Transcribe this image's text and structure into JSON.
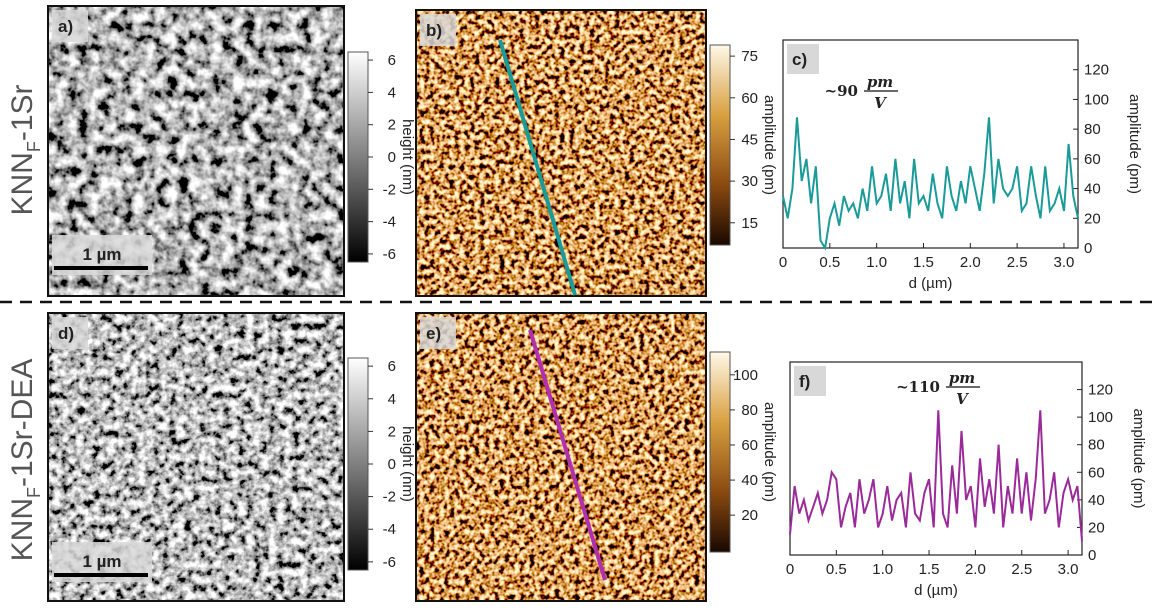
{
  "rows": [
    {
      "main": "KNN",
      "sub": "F",
      "rest": "-1Sr"
    },
    {
      "main": "KNN",
      "sub": "F",
      "rest": "-1Sr-DEA"
    }
  ],
  "images": [
    {
      "label": "a)",
      "scale_bar": "1 µm"
    },
    {
      "label": "b)"
    },
    {
      "label": "d)",
      "scale_bar": "1 µm"
    },
    {
      "label": "e)"
    }
  ],
  "colorbars": [
    {
      "label": "height (nm)",
      "lim": [
        -6.5,
        6.5
      ],
      "ticks": [
        6,
        4,
        2,
        0,
        -2,
        -4,
        -6
      ]
    },
    {
      "label": "amplitude (pm)",
      "lim": [
        7,
        79
      ],
      "ticks": [
        75,
        60,
        45,
        30,
        15
      ]
    },
    {
      "label": "height (nm)",
      "lim": [
        -6.5,
        6.5
      ],
      "ticks": [
        6,
        4,
        2,
        0,
        -2,
        -4,
        -6
      ]
    },
    {
      "label": "amplitude (pm)",
      "lim": [
        -1,
        113
      ],
      "ticks": [
        100,
        80,
        60,
        40,
        20
      ]
    }
  ],
  "chart_data": [
    {
      "type": "line",
      "label": "c)",
      "xlabel": "d (µm)",
      "ylabel": "amplitude (pm)",
      "color": "#1a9a98",
      "annotation": {
        "prefix": "~90",
        "numerator": "pm",
        "denominator": "V"
      },
      "xlim": [
        0,
        3.15
      ],
      "ylim": [
        0,
        140
      ],
      "xticks": [
        0,
        0.5,
        {
          "value": 1,
          "label": "1.0"
        },
        1.5,
        {
          "value": 2,
          "label": "2.0"
        },
        2.5,
        {
          "value": 3,
          "label": "3.0"
        }
      ],
      "yticks": [
        0,
        20,
        40,
        60,
        80,
        100,
        120
      ],
      "x": [
        0,
        0.05,
        0.1,
        0.15,
        0.2,
        0.25,
        0.3,
        0.35,
        0.4,
        0.45,
        0.5,
        0.55,
        0.6,
        0.65,
        0.7,
        0.75,
        0.8,
        0.85,
        0.9,
        0.95,
        1,
        1.05,
        1.1,
        1.15,
        1.2,
        1.25,
        1.3,
        1.35,
        1.4,
        1.45,
        1.5,
        1.55,
        1.6,
        1.65,
        1.7,
        1.75,
        1.8,
        1.85,
        1.9,
        1.95,
        2,
        2.05,
        2.1,
        2.15,
        2.2,
        2.25,
        2.3,
        2.35,
        2.4,
        2.45,
        2.5,
        2.55,
        2.6,
        2.65,
        2.7,
        2.75,
        2.8,
        2.85,
        2.9,
        2.95,
        3,
        3.05,
        3.1,
        3.15
      ],
      "values": [
        35,
        20,
        40,
        88,
        45,
        60,
        30,
        55,
        5,
        0,
        20,
        30,
        15,
        35,
        25,
        30,
        20,
        40,
        25,
        55,
        30,
        35,
        50,
        25,
        60,
        30,
        45,
        20,
        60,
        30,
        35,
        25,
        50,
        30,
        20,
        55,
        35,
        25,
        45,
        30,
        55,
        40,
        25,
        50,
        88,
        30,
        60,
        40,
        35,
        40,
        55,
        25,
        30,
        55,
        35,
        20,
        55,
        25,
        30,
        40,
        25,
        70,
        35,
        20
      ]
    },
    {
      "type": "line",
      "label": "f)",
      "xlabel": "d (µm)",
      "ylabel": "amplitude (pm)",
      "color": "#9a2a9a",
      "annotation": {
        "prefix": "~110",
        "numerator": "pm",
        "denominator": "V"
      },
      "xlim": [
        0,
        3.15
      ],
      "ylim": [
        0,
        140
      ],
      "xticks": [
        0,
        0.5,
        {
          "value": 1,
          "label": "1.0"
        },
        1.5,
        {
          "value": 2,
          "label": "2.0"
        },
        2.5,
        {
          "value": 3,
          "label": "3.0"
        }
      ],
      "yticks": [
        0,
        20,
        40,
        60,
        80,
        100,
        120
      ],
      "x": [
        0,
        0.05,
        0.1,
        0.15,
        0.2,
        0.25,
        0.3,
        0.35,
        0.4,
        0.45,
        0.5,
        0.55,
        0.6,
        0.65,
        0.7,
        0.75,
        0.8,
        0.85,
        0.9,
        0.95,
        1,
        1.05,
        1.1,
        1.15,
        1.2,
        1.25,
        1.3,
        1.35,
        1.4,
        1.45,
        1.5,
        1.55,
        1.6,
        1.65,
        1.7,
        1.75,
        1.8,
        1.85,
        1.9,
        1.95,
        2,
        2.05,
        2.1,
        2.15,
        2.2,
        2.25,
        2.3,
        2.35,
        2.4,
        2.45,
        2.5,
        2.55,
        2.6,
        2.65,
        2.7,
        2.75,
        2.8,
        2.85,
        2.9,
        2.95,
        3,
        3.05,
        3.1,
        3.15
      ],
      "values": [
        15,
        50,
        30,
        40,
        25,
        35,
        45,
        30,
        40,
        60,
        55,
        20,
        35,
        45,
        20,
        55,
        30,
        40,
        55,
        20,
        30,
        50,
        25,
        40,
        45,
        20,
        60,
        30,
        25,
        45,
        55,
        20,
        105,
        30,
        20,
        65,
        30,
        90,
        40,
        50,
        20,
        70,
        35,
        55,
        30,
        80,
        20,
        50,
        30,
        70,
        30,
        60,
        25,
        55,
        105,
        30,
        40,
        60,
        20,
        45,
        55,
        40,
        50,
        10
      ]
    }
  ]
}
